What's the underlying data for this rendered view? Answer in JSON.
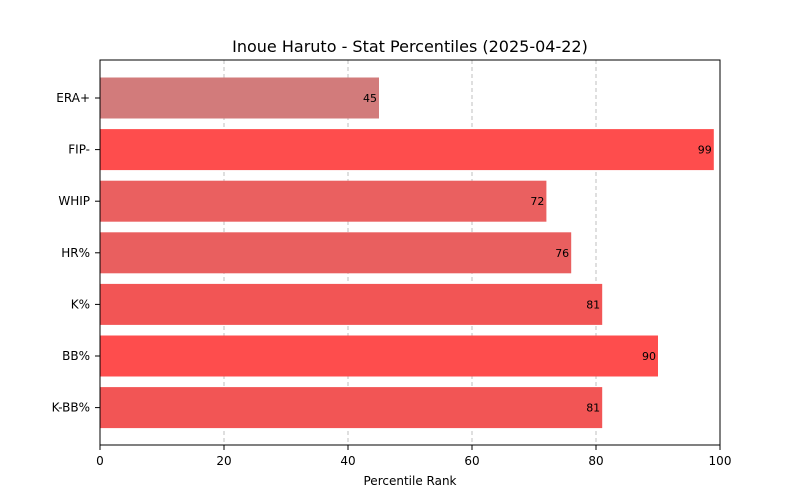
{
  "chart_data": {
    "type": "bar",
    "orientation": "horizontal",
    "title": "Inoue Haruto - Stat Percentiles (2025-04-22)",
    "xlabel": "Percentile Rank",
    "ylabel": "",
    "xlim": [
      0,
      100
    ],
    "xticks": [
      0,
      20,
      40,
      60,
      80,
      100
    ],
    "grid": "x-dashed",
    "categories": [
      "ERA+",
      "FIP-",
      "WHIP",
      "HR%",
      "K%",
      "BB%",
      "K-BB%"
    ],
    "values": [
      45,
      99,
      72,
      76,
      81,
      90,
      81
    ],
    "colors": [
      "#d27b7b",
      "#fe4d4d",
      "#ea6060",
      "#e95f5f",
      "#f25555",
      "#fe4d4d",
      "#f25555"
    ]
  }
}
